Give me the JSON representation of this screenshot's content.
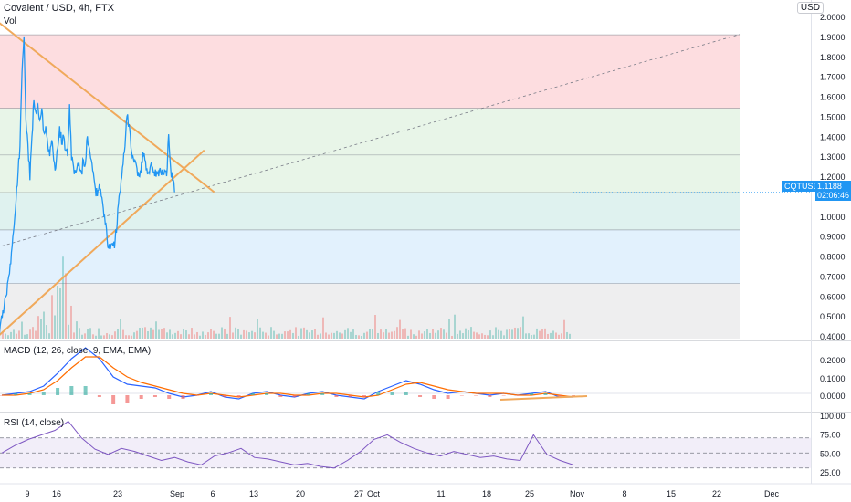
{
  "header": {
    "title": "Covalent / USD, 4h, FTX",
    "volume_label": "Vol",
    "currency": "USD",
    "macd_label": "MACD (12, 26, close, 9, EMA, EMA)",
    "rsi_label": "RSI (14, close)"
  },
  "price_tag": {
    "symbol": "CQTUSD",
    "price": "1.1188",
    "countdown": "02:06:46"
  },
  "colors": {
    "price_line": "#2196f3",
    "trend_line": "#f0a95b",
    "macd_line": "#2962ff",
    "signal_line": "#ff6d00",
    "rsi_line": "#7e57c2",
    "volume_up": "#26a69a",
    "volume_down": "#ef5350"
  },
  "chart_data": [
    {
      "type": "line",
      "title": "Covalent / USD, 4h, FTX",
      "series": [
        {
          "name": "CQTUSD",
          "points": [
            [
              "Aug 2",
              0.42
            ],
            [
              "Aug 3",
              0.45
            ],
            [
              "Aug 4",
              0.49
            ],
            [
              "Aug 5",
              0.55
            ],
            [
              "Aug 6",
              0.6
            ],
            [
              "Aug 7",
              0.68
            ],
            [
              "Aug 8",
              0.76
            ],
            [
              "Aug 9",
              0.85
            ],
            [
              "Aug 10",
              0.95
            ],
            [
              "Aug 11",
              1.08
            ],
            [
              "Aug 12",
              1.22
            ],
            [
              "Aug 13",
              1.35
            ],
            [
              "Aug 14",
              1.72
            ],
            [
              "Aug 15",
              1.9
            ],
            [
              "Aug 16",
              1.48
            ],
            [
              "Aug 17",
              1.36
            ],
            [
              "Aug 18",
              1.18
            ],
            [
              "Aug 19",
              1.4
            ],
            [
              "Aug 20",
              1.58
            ],
            [
              "Aug 21",
              1.52
            ],
            [
              "Aug 22",
              1.56
            ],
            [
              "Aug 23",
              1.48
            ],
            [
              "Aug 24",
              1.54
            ],
            [
              "Aug 25",
              1.42
            ],
            [
              "Aug 26",
              1.45
            ],
            [
              "Aug 27",
              1.36
            ],
            [
              "Aug 28",
              1.3
            ],
            [
              "Aug 29",
              1.38
            ],
            [
              "Aug 30",
              1.28
            ],
            [
              "Aug 31",
              1.24
            ],
            [
              "Sep 1",
              1.34
            ],
            [
              "Sep 2",
              1.45
            ],
            [
              "Sep 3",
              1.36
            ],
            [
              "Sep 4",
              1.4
            ],
            [
              "Sep 5",
              1.33
            ],
            [
              "Sep 6",
              1.3
            ],
            [
              "Sep 7",
              1.56
            ],
            [
              "Sep 8",
              1.28
            ],
            [
              "Sep 9",
              1.25
            ],
            [
              "Sep 10",
              1.22
            ],
            [
              "Sep 11",
              1.26
            ],
            [
              "Sep 12",
              1.24
            ],
            [
              "Sep 13",
              1.22
            ],
            [
              "Sep 14",
              1.28
            ],
            [
              "Sep 15",
              1.26
            ],
            [
              "Sep 16",
              1.4
            ],
            [
              "Sep 17",
              1.34
            ],
            [
              "Sep 18",
              1.28
            ],
            [
              "Sep 19",
              1.22
            ],
            [
              "Sep 20",
              1.14
            ],
            [
              "Sep 21",
              1.1
            ],
            [
              "Sep 22",
              1.16
            ],
            [
              "Sep 23",
              1.1
            ],
            [
              "Sep 24",
              1.04
            ],
            [
              "Sep 25",
              0.96
            ],
            [
              "Sep 26",
              0.88
            ],
            [
              "Sep 27",
              0.86
            ],
            [
              "Sep 28",
              0.86
            ],
            [
              "Sep 29",
              0.85
            ],
            [
              "Sep 30",
              0.88
            ],
            [
              "Oct 1",
              0.96
            ],
            [
              "Oct 2",
              1.1
            ],
            [
              "Oct 3",
              1.18
            ],
            [
              "Oct 4",
              1.26
            ],
            [
              "Oct 5",
              1.35
            ],
            [
              "Oct 6",
              1.5
            ],
            [
              "Oct 7",
              1.46
            ],
            [
              "Oct 8",
              1.34
            ],
            [
              "Oct 9",
              1.3
            ],
            [
              "Oct 10",
              1.28
            ],
            [
              "Oct 11",
              1.24
            ],
            [
              "Oct 12",
              1.2
            ],
            [
              "Oct 13",
              1.22
            ],
            [
              "Oct 14",
              1.32
            ],
            [
              "Oct 15",
              1.28
            ],
            [
              "Oct 16",
              1.24
            ],
            [
              "Oct 17",
              1.22
            ],
            [
              "Oct 18",
              1.26
            ],
            [
              "Oct 19",
              1.24
            ],
            [
              "Oct 20",
              1.2
            ],
            [
              "Oct 21",
              1.22
            ],
            [
              "Oct 22",
              1.2
            ],
            [
              "Oct 23",
              1.22
            ],
            [
              "Oct 24",
              1.21
            ],
            [
              "Oct 25",
              1.23
            ],
            [
              "Oct 26",
              1.2
            ],
            [
              "Oct 27",
              1.41
            ],
            [
              "Oct 28",
              1.24
            ],
            [
              "Oct 29",
              1.18
            ],
            [
              "Oct 30",
              1.12
            ]
          ]
        }
      ],
      "fibonacci_levels": [
        1.908,
        1.54,
        1.306,
        1.118,
        0.931,
        0.662
      ],
      "trendlines": [
        {
          "from": [
            "Aug 1",
            1.98
          ],
          "to": [
            "Nov 19",
            1.12
          ]
        },
        {
          "from": [
            "Aug 1",
            0.39
          ],
          "to": [
            "Nov 14",
            1.33
          ]
        }
      ],
      "ylim": [
        0.37,
        2.0
      ],
      "y_ticks": [
        "0.4000",
        "0.5000",
        "0.6000",
        "0.7000",
        "0.8000",
        "0.9000",
        "1.0000",
        "1.1000",
        "1.2000",
        "1.3000",
        "1.4000",
        "1.5000",
        "1.6000",
        "1.7000",
        "1.8000",
        "1.9000",
        "2.0000"
      ],
      "x_ticks": [
        "9",
        "16",
        "23",
        "Sep",
        "6",
        "13",
        "20",
        "27",
        "Oct",
        "11",
        "18",
        "25",
        "Nov",
        "8",
        "15",
        "22",
        "Dec"
      ]
    },
    {
      "type": "line",
      "title": "MACD (12, 26, close, 9, EMA, EMA)",
      "series": [
        {
          "name": "MACD",
          "values": [
            0.0,
            0.01,
            0.02,
            0.05,
            0.12,
            0.2,
            0.26,
            0.2,
            0.1,
            0.06,
            0.05,
            0.04,
            0.01,
            -0.01,
            0.0,
            0.02,
            -0.01,
            -0.02,
            0.01,
            0.02,
            0.0,
            -0.01,
            0.01,
            0.02,
            0.0,
            -0.01,
            -0.02,
            0.02,
            0.05,
            0.08,
            0.06,
            0.03,
            0.01,
            0.02,
            0.01,
            0.0,
            0.01,
            0.0,
            0.01,
            0.02,
            -0.01,
            -0.01
          ]
        },
        {
          "name": "Signal",
          "values": [
            0.0,
            0.0,
            0.01,
            0.03,
            0.08,
            0.15,
            0.21,
            0.21,
            0.15,
            0.1,
            0.07,
            0.05,
            0.03,
            0.01,
            0.0,
            0.01,
            0.0,
            -0.01,
            0.0,
            0.01,
            0.01,
            0.0,
            0.0,
            0.01,
            0.01,
            0.0,
            -0.01,
            0.0,
            0.03,
            0.06,
            0.07,
            0.05,
            0.03,
            0.02,
            0.01,
            0.01,
            0.01,
            0.0,
            0.0,
            0.01,
            0.0,
            -0.01
          ]
        }
      ],
      "y_ticks": [
        "0.2000",
        "0.1000",
        "0.0000"
      ]
    },
    {
      "type": "line",
      "title": "RSI (14, close)",
      "series": [
        {
          "name": "RSI",
          "values": [
            50,
            60,
            68,
            74,
            80,
            92,
            70,
            55,
            48,
            56,
            52,
            46,
            40,
            44,
            38,
            34,
            46,
            50,
            56,
            44,
            42,
            38,
            34,
            36,
            32,
            30,
            40,
            52,
            68,
            74,
            64,
            56,
            50,
            46,
            52,
            48,
            44,
            46,
            42,
            40,
            74,
            48,
            40,
            34
          ]
        }
      ],
      "reference_levels": [
        70,
        50,
        30
      ],
      "y_ticks": [
        "100.00",
        "75.00",
        "50.00",
        "25.00"
      ]
    }
  ]
}
